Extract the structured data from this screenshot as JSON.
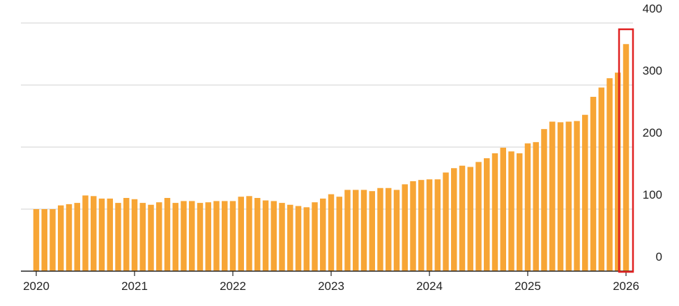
{
  "chart_data": {
    "type": "bar",
    "categories": [
      "2020",
      null,
      null,
      null,
      null,
      null,
      null,
      null,
      null,
      null,
      null,
      null,
      "2021",
      null,
      null,
      null,
      null,
      null,
      null,
      null,
      null,
      null,
      null,
      null,
      "2022",
      null,
      null,
      null,
      null,
      null,
      null,
      null,
      null,
      null,
      null,
      null,
      "2023",
      null,
      null,
      null,
      null,
      null,
      null,
      null,
      null,
      null,
      null,
      null,
      "2024",
      null,
      null,
      null,
      null,
      null,
      null,
      null,
      null,
      null,
      null,
      null,
      "2025",
      null,
      null,
      null,
      null,
      null,
      null,
      null,
      null,
      null,
      null,
      null,
      "2026"
    ],
    "values": [
      100,
      100,
      100,
      106,
      108,
      110,
      122,
      121,
      117,
      117,
      110,
      118,
      116,
      110,
      107,
      111,
      118,
      110,
      113,
      113,
      110,
      111,
      113,
      113,
      113,
      120,
      121,
      118,
      114,
      113,
      110,
      107,
      105,
      103,
      111,
      117,
      124,
      120,
      131,
      131,
      131,
      129,
      134,
      134,
      131,
      140,
      145,
      147,
      148,
      148,
      159,
      166,
      170,
      168,
      176,
      182,
      190,
      199,
      193,
      190,
      206,
      208,
      229,
      241,
      240,
      241,
      242,
      252,
      281,
      296,
      311,
      320,
      366
    ],
    "color": "#f7a535",
    "ylim": [
      0,
      400
    ],
    "yticks": [
      0,
      100,
      200,
      300,
      400
    ],
    "grid": true
  }
}
